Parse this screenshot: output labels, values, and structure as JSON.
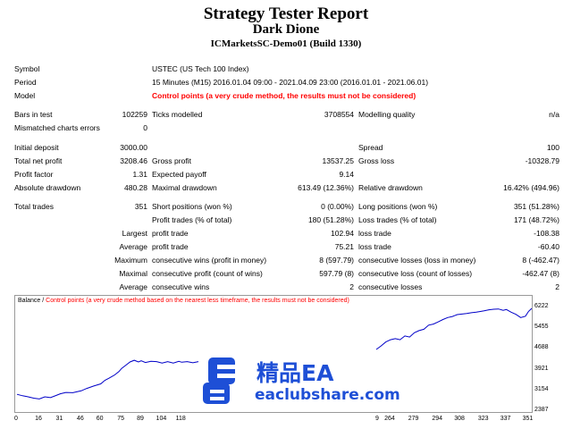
{
  "header": {
    "title": "Strategy Tester Report",
    "subtitle": "Dark Dione",
    "account": "ICMarketsSC-Demo01 (Build 1330)"
  },
  "info": {
    "symbol_label": "Symbol",
    "symbol_value": "USTEC (US Tech 100 Index)",
    "period_label": "Period",
    "period_value": "15 Minutes (M15) 2016.01.04 09:00 - 2021.04.09 23:00 (2016.01.01 - 2021.06.01)",
    "model_label": "Model",
    "model_value": "Control points (a very crude method, the results must not be considered)"
  },
  "stats": {
    "bars_label": "Bars in test",
    "bars_value": "102259",
    "ticks_label": "Ticks modelled",
    "ticks_value": "3708554",
    "quality_label": "Modelling quality",
    "quality_value": "n/a",
    "mismatch_label": "Mismatched charts errors",
    "mismatch_value": "0",
    "deposit_label": "Initial deposit",
    "deposit_value": "3000.00",
    "spread_label": "Spread",
    "spread_value": "100",
    "netprofit_label": "Total net profit",
    "netprofit_value": "3208.46",
    "grossprofit_label": "Gross profit",
    "grossprofit_value": "13537.25",
    "grossloss_label": "Gross loss",
    "grossloss_value": "-10328.79",
    "pf_label": "Profit factor",
    "pf_value": "1.31",
    "payoff_label": "Expected payoff",
    "payoff_value": "9.14",
    "absdd_label": "Absolute drawdown",
    "absdd_value": "480.28",
    "maxdd_label": "Maximal drawdown",
    "maxdd_value": "613.49 (12.36%)",
    "reldd_label": "Relative drawdown",
    "reldd_value": "16.42% (494.96)",
    "trades_label": "Total trades",
    "trades_value": "351",
    "short_label": "Short positions (won %)",
    "short_value": "0 (0.00%)",
    "long_label": "Long positions (won %)",
    "long_value": "351 (51.28%)",
    "profit_trades_label": "Profit trades (% of total)",
    "profit_trades_value": "180 (51.28%)",
    "loss_trades_label": "Loss trades (% of total)",
    "loss_trades_value": "171 (48.72%)",
    "largest_label": "Largest",
    "largest_profit_label": "profit trade",
    "largest_profit_value": "102.94",
    "largest_loss_label": "loss trade",
    "largest_loss_value": "-108.38",
    "average_label": "Average",
    "average_profit_label": "profit trade",
    "average_profit_value": "75.21",
    "average_loss_label": "loss trade",
    "average_loss_value": "-60.40",
    "maximum_label": "Maximum",
    "max_wins_label": "consecutive wins (profit in money)",
    "max_wins_value": "8 (597.79)",
    "max_losses_label": "consecutive losses (loss in money)",
    "max_losses_value": "8 (-462.47)",
    "maximal_label": "Maximal",
    "maximal_profit_label": "consecutive profit (count of wins)",
    "maximal_profit_value": "597.79 (8)",
    "maximal_loss_label": "consecutive loss (count of losses)",
    "maximal_loss_value": "-462.47 (8)",
    "average2_label": "Average",
    "avg_wins_label": "consecutive wins",
    "avg_wins_value": "2",
    "avg_losses_label": "consecutive losses",
    "avg_losses_value": "2"
  },
  "chart": {
    "title_prefix": "Balance / ",
    "title_note": "Control points (a very crude method based on the nearest less timeframe, the results must not be considered)",
    "line_color": "#0000c8"
  },
  "chart_data": {
    "type": "line",
    "title": "Balance",
    "y_ticks": [
      "6222",
      "5455",
      "4688",
      "3921",
      "3154",
      "2387"
    ],
    "x_ticks_left": [
      "0",
      "16",
      "31",
      "46",
      "60",
      "75",
      "89",
      "104",
      "118"
    ],
    "x_ticks_right": [
      "9",
      "264",
      "279",
      "294",
      "308",
      "323",
      "337",
      "351"
    ],
    "ylim": [
      2387,
      6222
    ],
    "series": [
      {
        "x": [
          0,
          4,
          8,
          12,
          16,
          20,
          24,
          28,
          31,
          35,
          40,
          46,
          50,
          55,
          60,
          63,
          66,
          70,
          73,
          75,
          78,
          81,
          84,
          87,
          89,
          92,
          96,
          100,
          104,
          108,
          112,
          116,
          118,
          122,
          126,
          130
        ],
        "y": [
          3040,
          2990,
          2950,
          2900,
          2870,
          2950,
          2920,
          3000,
          3060,
          3110,
          3100,
          3170,
          3260,
          3350,
          3430,
          3560,
          3640,
          3760,
          3880,
          4000,
          4120,
          4240,
          4300,
          4240,
          4280,
          4220,
          4260,
          4250,
          4200,
          4250,
          4200,
          4260,
          4230,
          4250,
          4210,
          4250
        ]
      },
      {
        "x": [
          255,
          258,
          261,
          264,
          267,
          270,
          273,
          276,
          279,
          282,
          285,
          288,
          291,
          294,
          297,
          300,
          303,
          306,
          309,
          312,
          315,
          318,
          321,
          323,
          326,
          329,
          332,
          335,
          337,
          340,
          343,
          346,
          349,
          351,
          353
        ],
        "y": [
          4700,
          4830,
          4980,
          5060,
          5100,
          5060,
          5200,
          5160,
          5320,
          5400,
          5450,
          5600,
          5640,
          5720,
          5810,
          5880,
          5920,
          5990,
          6010,
          6030,
          6060,
          6080,
          6110,
          6130,
          6170,
          6190,
          6200,
          6150,
          6180,
          6080,
          6000,
          5880,
          5930,
          6110,
          6222
        ]
      }
    ]
  },
  "watermark": {
    "text_cn": "精品EA",
    "text_en": "eaclubshare.com",
    "color": "#1e4fd6"
  }
}
